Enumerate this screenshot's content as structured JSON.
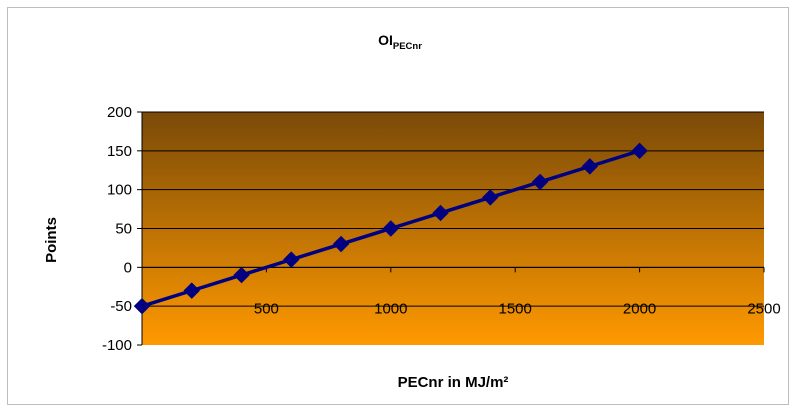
{
  "chart_data": {
    "type": "line",
    "title_main": "OI",
    "title_sub": "PECnr",
    "xlabel": "PECnr in MJ/m²",
    "ylabel": "Points",
    "xlim": [
      0,
      2500
    ],
    "ylim": [
      -100,
      200
    ],
    "x_ticks": [
      500,
      1000,
      1500,
      2000,
      2500
    ],
    "y_ticks": [
      -100,
      -50,
      0,
      50,
      100,
      150,
      200
    ],
    "grid": "horizontal",
    "legend": "none",
    "series": [
      {
        "x": [
          0,
          200,
          400,
          600,
          800,
          1000,
          1200,
          1400,
          1600,
          1800,
          2000
        ],
        "y": [
          -50,
          -30,
          -10,
          10,
          30,
          50,
          70,
          90,
          110,
          130,
          150
        ],
        "color": "#000080",
        "marker": "diamond"
      }
    ],
    "colors": {
      "plot_gradient_top": "#7a4a08",
      "plot_gradient_bottom": "#ff9900",
      "line": "#000080",
      "gridline": "#000000"
    }
  }
}
